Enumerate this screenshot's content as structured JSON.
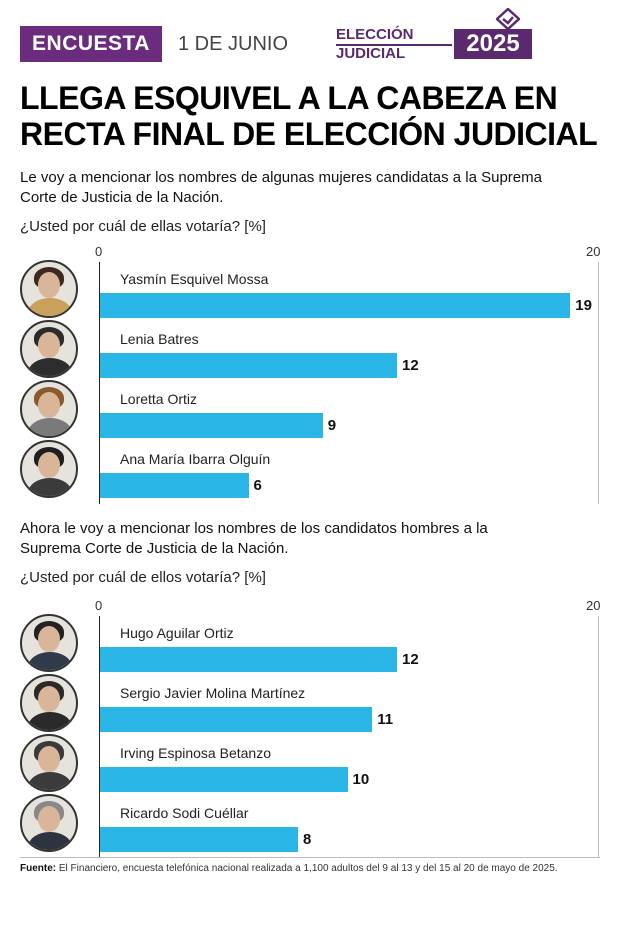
{
  "header": {
    "tag": "ENCUESTA",
    "date": "1 DE JUNIO",
    "badge_line1": "ELECCIÓN",
    "badge_line2": "JUDICIAL",
    "badge_year": "2025"
  },
  "title": {
    "line1": "LLEGA ESQUIVEL A LA CABEZA EN",
    "line2": "RECTA FINAL DE ELECCIÓN JUDICIAL"
  },
  "section_women": {
    "intro_line1": "Le voy a mencionar los nombres de algunas mujeres candidatas a la Suprema",
    "intro_line2": "Corte de Justicia de la Nación.",
    "question": "¿Usted por cuál de ellas votaría? [%]",
    "tick_min": "0",
    "tick_max": "20"
  },
  "section_men": {
    "intro_line1": "Ahora le voy a mencionar los nombres de los candidatos hombres a la",
    "intro_line2": "Suprema Corte de Justicia de la Nación.",
    "question": "¿Usted por cuál de ellos votaría? [%]",
    "tick_min": "0",
    "tick_max": "20"
  },
  "footer": {
    "label": "Fuente:",
    "text": " El Financiero, encuesta telefónica nacional realizada a 1,100 adultos del 9 al 13 y del 15 al 20 de mayo de 2025."
  },
  "colors": {
    "bar": "#29b6e6",
    "brand_purple": "#6b2c7e",
    "badge_purple": "#5b2a6e"
  },
  "chart_data": [
    {
      "type": "bar",
      "orientation": "horizontal",
      "categories": [
        "Yasmín Esquivel Mossa",
        "Lenia Batres",
        "Loretta Ortiz",
        "Ana María Ibarra Olguín"
      ],
      "values": [
        19,
        12,
        9,
        6
      ],
      "xlim": [
        0,
        20
      ]
    },
    {
      "type": "bar",
      "orientation": "horizontal",
      "categories": [
        "Hugo Aguilar Ortiz",
        "Sergio Javier Molina Martínez",
        "Irving Espinosa Betanzo",
        "Ricardo Sodi Cuéllar"
      ],
      "values": [
        12,
        11,
        10,
        8
      ],
      "xlim": [
        0,
        20
      ]
    }
  ]
}
